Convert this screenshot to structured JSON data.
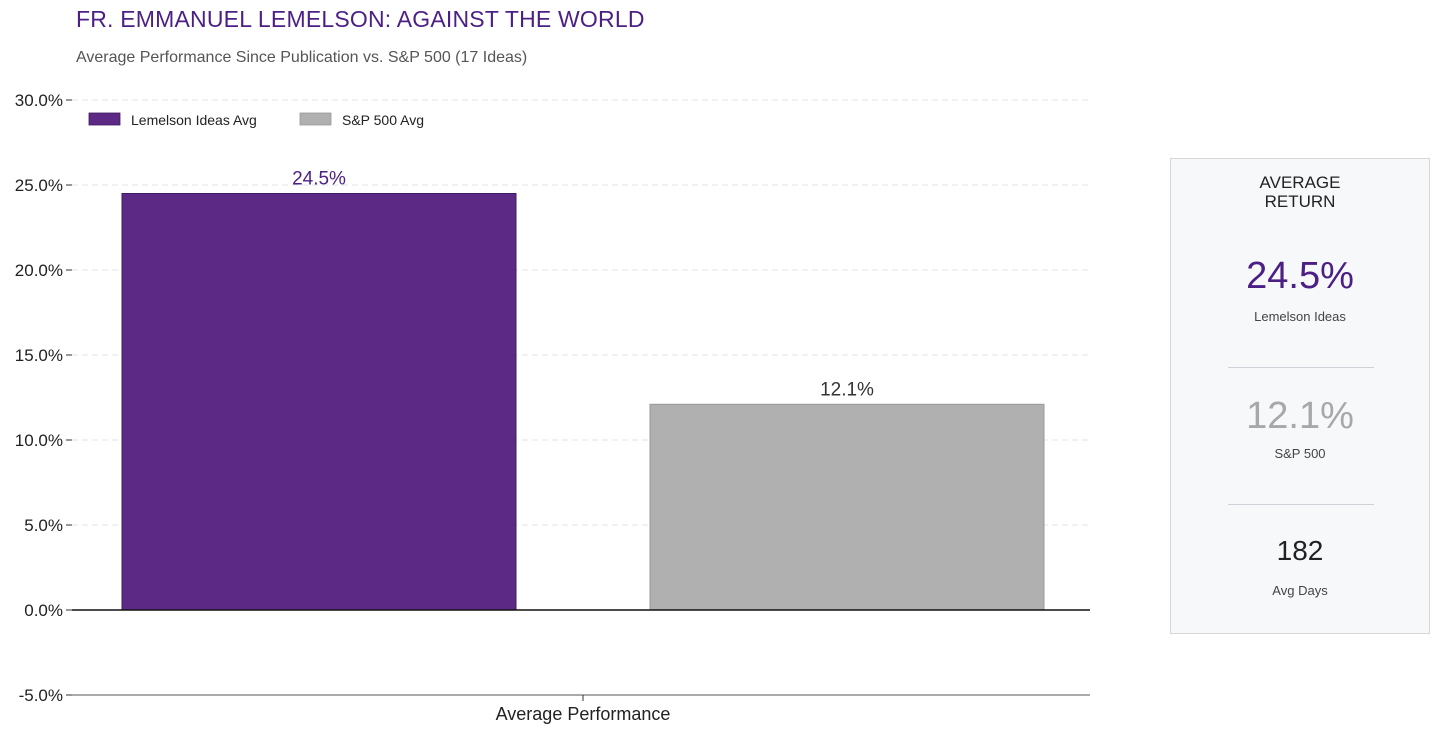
{
  "header": {
    "title": "FR. EMMANUEL LEMELSON: AGAINST THE WORLD",
    "subtitle": "Average Performance Since Publication vs. S&P 500 (17 Ideas)"
  },
  "chart_data": {
    "type": "bar",
    "categories": [
      "Average Performance"
    ],
    "series": [
      {
        "name": "Lemelson Ideas Avg",
        "values": [
          24.5
        ],
        "label": "24.5%",
        "color": "#5c2a85"
      },
      {
        "name": "S&P 500 Avg",
        "values": [
          12.1
        ],
        "label": "12.1%",
        "color": "#b0b0b0"
      }
    ],
    "ylim": [
      -5,
      30
    ],
    "yticks": [
      -5,
      0,
      5,
      10,
      15,
      20,
      25,
      30
    ],
    "ytick_labels": [
      "-5.0%",
      "0.0%",
      "5.0%",
      "10.0%",
      "15.0%",
      "20.0%",
      "25.0%",
      "30.0%"
    ],
    "xlabel": "",
    "ylabel": "",
    "grid": true,
    "legend_position": "top-left"
  },
  "panel": {
    "heading_line1": "AVERAGE",
    "heading_line2": "RETURN",
    "stats": [
      {
        "value": "24.5%",
        "label": "Lemelson Ideas",
        "color": "#4b1f84"
      },
      {
        "value": "12.1%",
        "label": "S&P 500",
        "color": "#a8a8a8"
      },
      {
        "value": "182",
        "label": "Avg Days",
        "color": "#222222"
      }
    ]
  }
}
